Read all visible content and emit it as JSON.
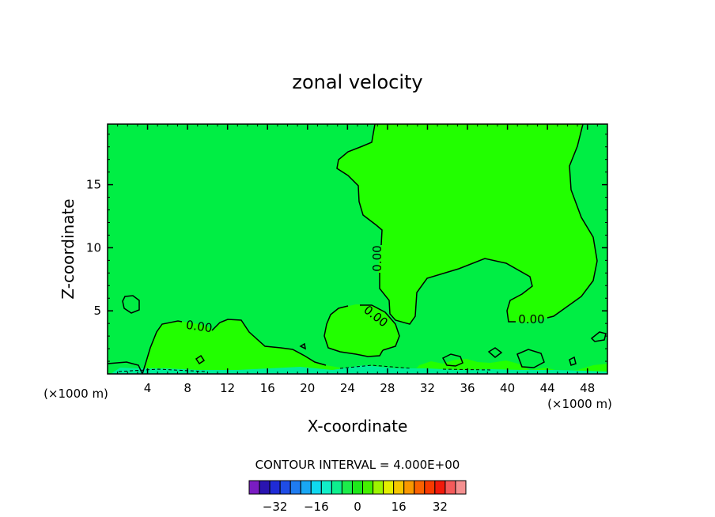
{
  "chart_data": {
    "type": "contour",
    "title": "zonal velocity",
    "xlabel": "X-coordinate",
    "ylabel": "Z-coordinate",
    "x_unit_left": "(×1000 m)",
    "x_unit_right": "(×1000 m)",
    "xlim": [
      0,
      50
    ],
    "ylim": [
      0,
      19.8
    ],
    "x_ticks": [
      4,
      8,
      12,
      16,
      20,
      24,
      28,
      32,
      36,
      40,
      44,
      48
    ],
    "x_tick_labels": [
      "4",
      "8",
      "12",
      "16",
      "20",
      "24",
      "28",
      "32",
      "36",
      "40",
      "44",
      "48"
    ],
    "y_ticks": [
      5,
      10,
      15
    ],
    "y_tick_labels": [
      "5",
      "10",
      "15"
    ],
    "contour_interval_text": "CONTOUR INTERVAL = 4.000E+00",
    "contour_labels": [
      {
        "text": "0.00",
        "x": 9.2,
        "z": 3.7
      },
      {
        "text": "0.00",
        "x": 26.6,
        "z": 4.5
      },
      {
        "text": "0.00",
        "x": 27.0,
        "z": 9.1
      },
      {
        "text": "0.00",
        "x": 42.0,
        "z": 4.3
      }
    ],
    "background_color": "#00ee44",
    "positive_region_color": "#22ff00",
    "negative_region_color": "#00ee99",
    "zero_contour_color": "#000000",
    "colorbar": {
      "colors": [
        "#7a1cc2",
        "#2a14b0",
        "#1f2bd6",
        "#1f4de6",
        "#1f7cf0",
        "#19a7f4",
        "#10d8ef",
        "#12eec8",
        "#0eef8e",
        "#1ced4a",
        "#1ee81a",
        "#45f000",
        "#9ef500",
        "#e4ef00",
        "#f6c700",
        "#fa9800",
        "#fb6200",
        "#f83a00",
        "#f2190a",
        "#f55a5a",
        "#f59090"
      ],
      "tick_labels": [
        "−32",
        "−16",
        "0",
        "16",
        "32"
      ],
      "tick_values": [
        -32,
        -16,
        0,
        16,
        32
      ],
      "min": -42,
      "max": 42
    }
  }
}
